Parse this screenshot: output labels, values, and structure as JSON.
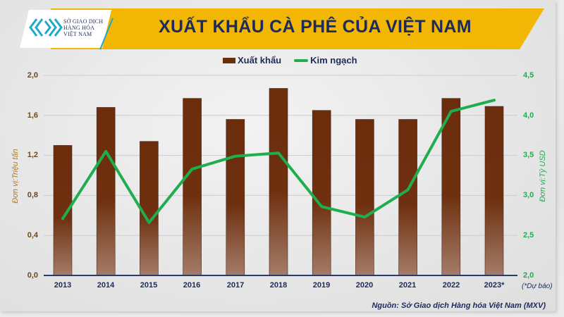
{
  "header": {
    "logo_lines": [
      "SỞ GIAO DỊCH",
      "HÀNG HÓA",
      "VIỆT NAM"
    ],
    "title": "XUẤT KHẨU CÀ PHÊ CỦA VIỆT NAM"
  },
  "legend": {
    "bar_label": "Xuất khẩu",
    "line_label": "Kim ngạch"
  },
  "axes": {
    "left_label": "Đơn vị:Triệu tấn",
    "right_label": "Đơn vị:Tỷ USD",
    "left_ticks": [
      "2,0",
      "1,6",
      "1,2",
      "0,8",
      "0,4",
      "0,0"
    ],
    "right_ticks": [
      "4,5",
      "4,0",
      "3,5",
      "3,0",
      "2,5",
      "2,0"
    ]
  },
  "forecast_note": "(*Dự báo)",
  "source": "Nguồn: Sở Giao dịch Hàng hóa Việt Nam (MXV)",
  "colors": {
    "banner": "#f2b705",
    "title": "#1c2a5c",
    "bar_top": "#6b2d0c",
    "bar_bottom": "#a47c68",
    "line": "#1fae4f",
    "left_axis_label": "#b07b2a"
  },
  "chart_data": {
    "type": "bar",
    "title": "XUẤT KHẨU CÀ PHÊ CỦA VIỆT NAM",
    "categories": [
      "2013",
      "2014",
      "2015",
      "2016",
      "2017",
      "2018",
      "2019",
      "2020",
      "2021",
      "2022",
      "2023*"
    ],
    "series": [
      {
        "name": "Xuất khẩu",
        "type": "bar",
        "axis": "left",
        "unit": "Triệu tấn",
        "values": [
          1.3,
          1.68,
          1.34,
          1.77,
          1.56,
          1.87,
          1.65,
          1.56,
          1.56,
          1.77,
          1.69
        ]
      },
      {
        "name": "Kim ngạch",
        "type": "line",
        "axis": "right",
        "unit": "Tỷ USD",
        "values": [
          2.71,
          3.55,
          2.66,
          3.33,
          3.49,
          3.53,
          2.86,
          2.73,
          3.07,
          4.05,
          4.19
        ]
      }
    ],
    "xlabel": "",
    "ylabel": "Đơn vị:Triệu tấn",
    "y2label": "Đơn vị:Tỷ USD",
    "ylim": [
      0,
      2.0
    ],
    "y2lim": [
      2.0,
      4.5
    ],
    "grid": true,
    "legend_position": "top-center",
    "annotations": [
      "(*Dự báo)",
      "Nguồn: Sở Giao dịch Hàng hóa Việt Nam (MXV)"
    ]
  }
}
